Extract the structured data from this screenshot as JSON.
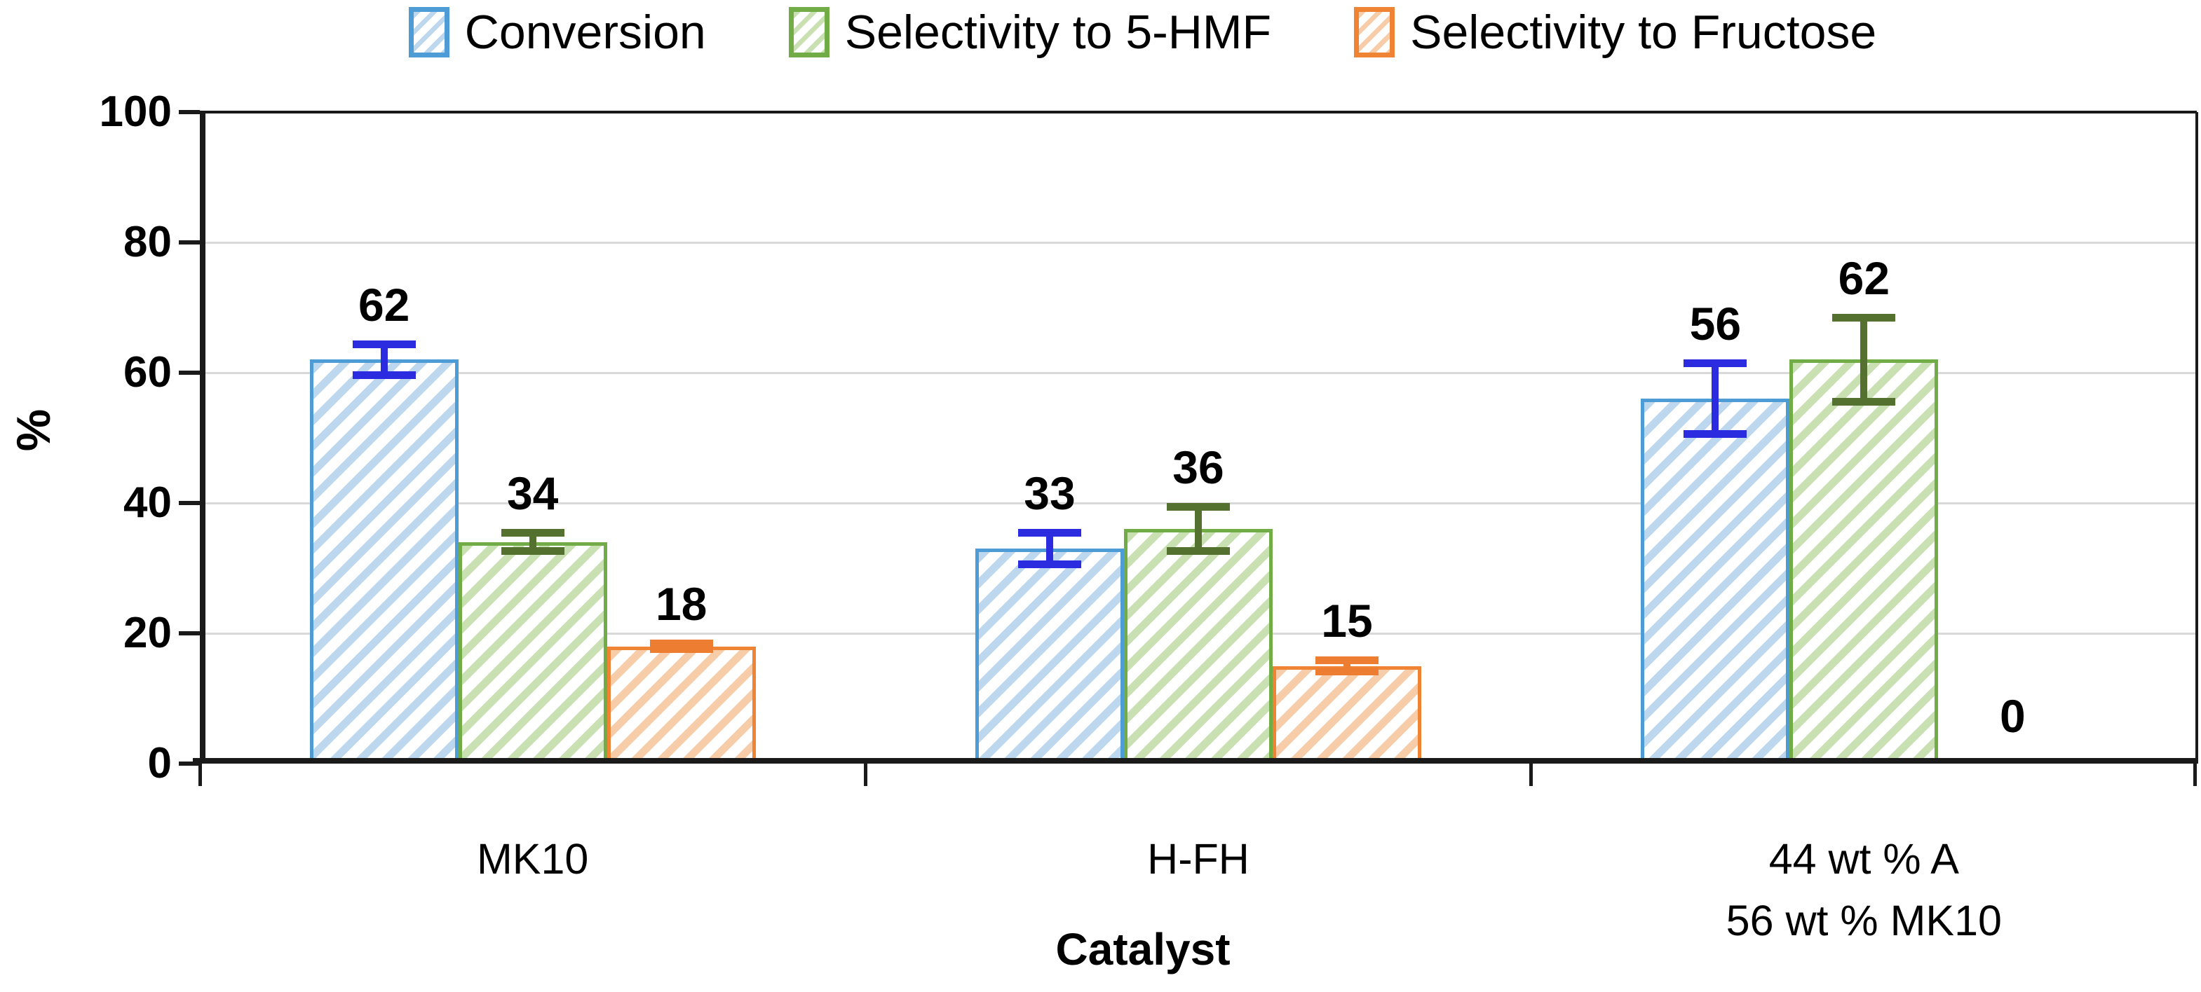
{
  "chart_data": {
    "type": "bar",
    "title": "",
    "xlabel": "Catalyst",
    "ylabel": "%",
    "ylim": [
      0,
      100
    ],
    "yticks": [
      0,
      20,
      40,
      60,
      80,
      100
    ],
    "gridlines": [
      20,
      40,
      60,
      80
    ],
    "grid": "horizontal",
    "legend_position": "top-center",
    "categories": [
      "MK10",
      "H-FH",
      "44 wt % A\n56 wt % MK10"
    ],
    "series": [
      {
        "name": "Conversion",
        "values": [
          62,
          33,
          56
        ],
        "errors": [
          3,
          3,
          6
        ],
        "color": "#4e9cd6",
        "stripe_color": "#bdd7ee",
        "error_color": "#2b2be0"
      },
      {
        "name": "Selectivity to 5-HMF",
        "values": [
          34,
          36,
          62
        ],
        "errors": [
          2,
          4,
          7
        ],
        "color": "#71ac47",
        "stripe_color": "#c9e0b2",
        "error_color": "#55712f"
      },
      {
        "name": "Selectivity to Fructose",
        "values": [
          18,
          15,
          0
        ],
        "errors": [
          1,
          1.5,
          0
        ],
        "color": "#ee8434",
        "stripe_color": "#f7cda9",
        "error_color": "#ed7d31"
      }
    ],
    "data_labels": [
      [
        62,
        33,
        56
      ],
      [
        34,
        36,
        62
      ],
      [
        18,
        15,
        0
      ]
    ],
    "colors": {
      "background": "#ffffff",
      "axis": "#1a1a1a",
      "gridline": "#d9d9d9",
      "text": "#000000"
    }
  }
}
